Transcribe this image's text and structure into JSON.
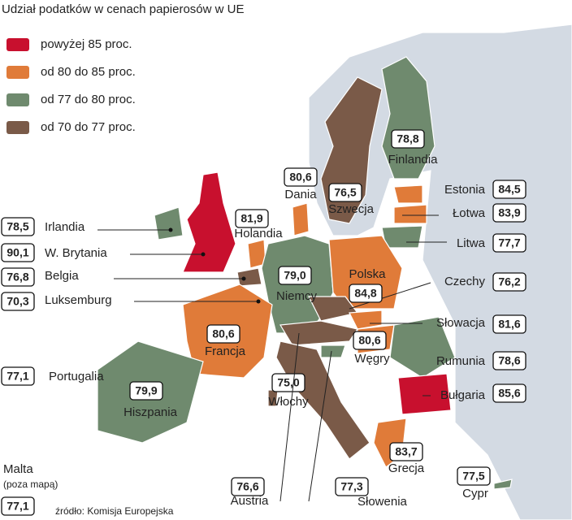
{
  "title": "Udział podatków w cenach papierosów w UE",
  "legend": [
    {
      "label": "powyżej 85 proc.",
      "color": "#c8102e"
    },
    {
      "label": "od 80 do 85 proc.",
      "color": "#e07b39"
    },
    {
      "label": "od 77 do 80 proc.",
      "color": "#6f8a6e"
    },
    {
      "label": "od 70 do 77 proc.",
      "color": "#7a5a48"
    }
  ],
  "countries": [
    {
      "name": "Irlandia",
      "value": "78,5"
    },
    {
      "name": "W. Brytania",
      "value": "90,1"
    },
    {
      "name": "Belgia",
      "value": "76,8"
    },
    {
      "name": "Luksemburg",
      "value": "70,3"
    },
    {
      "name": "Portugalia",
      "value": "77,1"
    },
    {
      "name": "Estonia",
      "value": "84,5"
    },
    {
      "name": "Łotwa",
      "value": "83,9"
    },
    {
      "name": "Litwa",
      "value": "77,7"
    },
    {
      "name": "Czechy",
      "value": "76,2"
    },
    {
      "name": "Słowacja",
      "value": "81,6"
    },
    {
      "name": "Rumunia",
      "value": "78,6"
    },
    {
      "name": "Bułgaria",
      "value": "85,6"
    },
    {
      "name": "Dania",
      "value": "80,6"
    },
    {
      "name": "Holandia",
      "value": "81,9"
    },
    {
      "name": "Szwecja",
      "value": "76,5"
    },
    {
      "name": "Finlandia",
      "value": "78,8"
    },
    {
      "name": "Niemcy",
      "value": "79,0"
    },
    {
      "name": "Polska",
      "value": "84,8"
    },
    {
      "name": "Francja",
      "value": "80,6"
    },
    {
      "name": "Węgry",
      "value": "80,6"
    },
    {
      "name": "Hiszpania",
      "value": "79,9"
    },
    {
      "name": "Włochy",
      "value": "75,0"
    },
    {
      "name": "Grecja",
      "value": "83,7"
    },
    {
      "name": "Cypr",
      "value": "77,5"
    },
    {
      "name": "Austria",
      "value": "76,6"
    },
    {
      "name": "Słowenia",
      "value": "77,3"
    }
  ],
  "malta": {
    "name": "Malta",
    "note": "(poza mapą)",
    "value": "77,1"
  },
  "source": "źródło: Komisja Europejska"
}
